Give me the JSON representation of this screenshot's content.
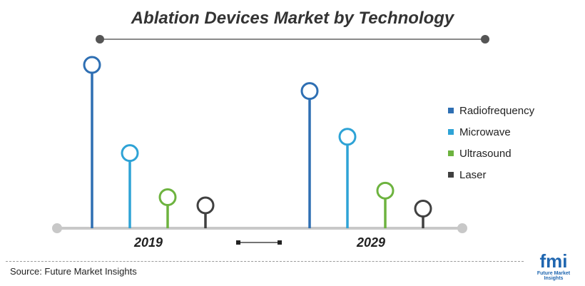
{
  "chart_data": {
    "type": "lollipop",
    "title": "Ablation Devices Market by Technology",
    "categories": [
      "2019",
      "2029"
    ],
    "series": [
      {
        "name": "Radiofrequency",
        "color": "#2e6fb3",
        "values": [
          100,
          84
        ]
      },
      {
        "name": "Microwave",
        "color": "#2ea3d6",
        "values": [
          46,
          56
        ]
      },
      {
        "name": "Ultrasound",
        "color": "#6db33f",
        "values": [
          19,
          23
        ]
      },
      {
        "name": "Laser",
        "color": "#404040",
        "values": [
          14,
          12
        ]
      }
    ],
    "ylim": [
      0,
      100
    ],
    "grid": false,
    "legend": "right"
  },
  "source": "Source: Future Market Insights",
  "logo": {
    "mark": "fmi",
    "tagline": "Future Market Insights"
  }
}
